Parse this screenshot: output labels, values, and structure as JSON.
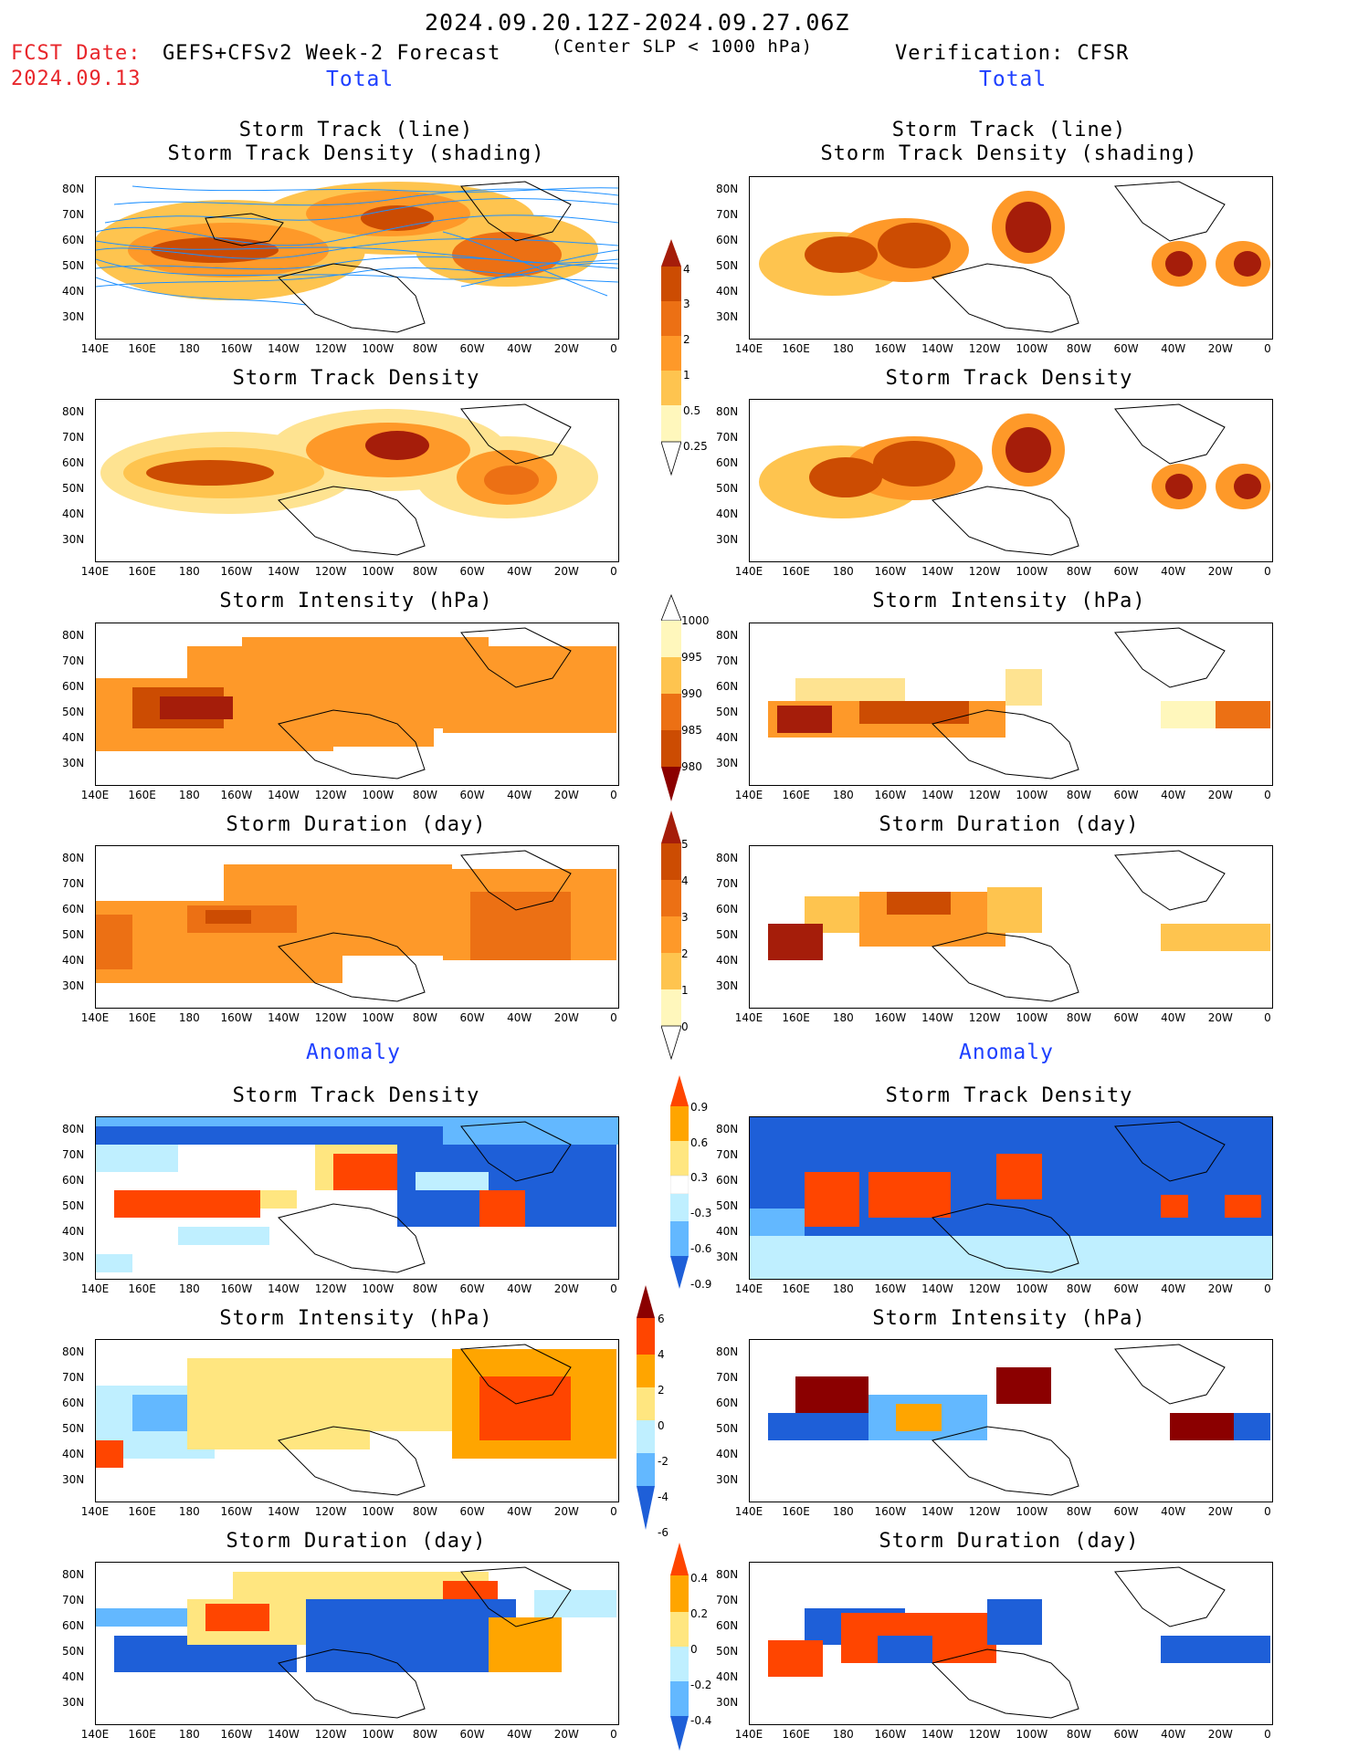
{
  "header": {
    "date_range": "2024.09.20.12Z-2024.09.27.06Z",
    "fcst_label": "FCST Date:",
    "fcst_date": "2024.09.13",
    "model": "GEFS+CFSv2 Week-2 Forecast",
    "criterion": "(Center SLP < 1000 hPa)",
    "verification": "Verification: CFSR"
  },
  "sections": {
    "total_left": "Total",
    "total_right": "Total",
    "anomaly_left": "Anomaly",
    "anomaly_right": "Anomaly"
  },
  "panel_titles": {
    "track_line": "Storm Track (line)",
    "track_shading": "Storm Track Density (shading)",
    "density": "Storm Track Density",
    "intensity": "Storm Intensity (hPa)",
    "duration": "Storm Duration (day)"
  },
  "axes": {
    "lat_ticks": [
      "80N",
      "70N",
      "60N",
      "50N",
      "40N",
      "30N"
    ],
    "lon_ticks": [
      "140E",
      "160E",
      "180",
      "160W",
      "140W",
      "120W",
      "100W",
      "80W",
      "60W",
      "40W",
      "20W",
      "0"
    ]
  },
  "colorbars": {
    "density_total": [
      "4",
      "3",
      "2",
      "1",
      "0.5",
      "0.25"
    ],
    "intensity_total": [
      "1000",
      "995",
      "990",
      "985",
      "980"
    ],
    "duration_total": [
      "5",
      "4",
      "3",
      "2",
      "1",
      "0"
    ],
    "density_anom": [
      "0.9",
      "0.6",
      "0.3",
      "-0.3",
      "-0.6",
      "-0.9"
    ],
    "intensity_anom": [
      "6",
      "4",
      "2",
      "0",
      "-2",
      "-4",
      "-6"
    ],
    "duration_anom": [
      "0.4",
      "0.2",
      "0",
      "-0.2",
      "-0.4"
    ]
  },
  "colors": {
    "track_line": "#1e90ff",
    "warm_scale": [
      "#fff7bc",
      "#fee391",
      "#fec44f",
      "#fe9929",
      "#ec7014",
      "#cc4c02",
      "#a51d0a",
      "#7f0000"
    ],
    "anom_pos": [
      "#ffe680",
      "#ffa500",
      "#ff4500"
    ],
    "anom_neg": [
      "#bfefff",
      "#63b8ff",
      "#1e5fd8"
    ],
    "title_red": "#e8262b",
    "section_blue": "#1e40ff"
  }
}
